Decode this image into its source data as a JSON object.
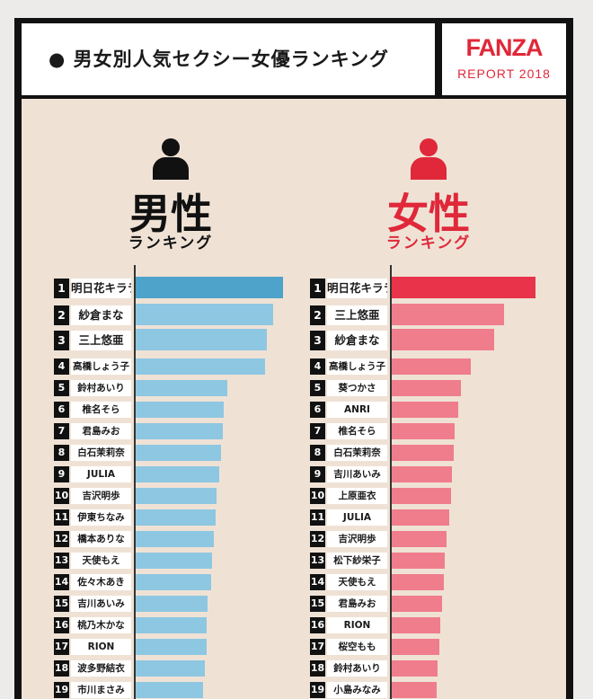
{
  "header": {
    "title": "● 男女別人気セクシー女優ランキング"
  },
  "logo": {
    "brand": "FANZA",
    "subtitle": "REPORT 2018"
  },
  "colors": {
    "male_top": "#4da3c9",
    "male_bar": "#8ec7e2",
    "female_top": "#e8334a",
    "female_bar": "#ef7d8c",
    "background": "#efe2d5"
  },
  "chart_data": [
    {
      "type": "bar",
      "orientation": "horizontal",
      "title": "男性",
      "subtitle": "ランキング",
      "icon": "person-icon",
      "categories": [
        "明日花キララ",
        "紗倉まな",
        "三上悠亜",
        "高橋しょう子",
        "鈴村あいり",
        "椎名そら",
        "君島みお",
        "白石茉莉奈",
        "JULIA",
        "吉沢明歩",
        "伊東ちなみ",
        "橋本ありな",
        "天使もえ",
        "佐々木あき",
        "吉川あいみ",
        "桃乃木かな",
        "RION",
        "波多野結衣",
        "市川まさみ"
      ],
      "ranks": [
        "1",
        "2",
        "3",
        "4",
        "5",
        "6",
        "7",
        "8",
        "9",
        "10",
        "11",
        "12",
        "13",
        "14",
        "15",
        "16",
        "17",
        "18",
        "19"
      ],
      "values": [
        100,
        93,
        89,
        88,
        62,
        60,
        59,
        58,
        57,
        55,
        54,
        53,
        52,
        51,
        49,
        48,
        48,
        47,
        46
      ]
    },
    {
      "type": "bar",
      "orientation": "horizontal",
      "title": "女性",
      "subtitle": "ランキング",
      "icon": "person-icon",
      "categories": [
        "明日花キララ",
        "三上悠亜",
        "紗倉まな",
        "高橋しょう子",
        "葵つかさ",
        "ANRI",
        "椎名そら",
        "白石茉莉奈",
        "吉川あいみ",
        "上原亜衣",
        "JULIA",
        "吉沢明歩",
        "松下紗栄子",
        "天使もえ",
        "君島みお",
        "RION",
        "桜空もも",
        "鈴村あいり",
        "小島みなみ"
      ],
      "ranks": [
        "1",
        "2",
        "3",
        "4",
        "5",
        "6",
        "7",
        "8",
        "9",
        "10",
        "11",
        "12",
        "13",
        "14",
        "15",
        "16",
        "17",
        "18",
        "19"
      ],
      "values": [
        100,
        78,
        71,
        55,
        48,
        46,
        44,
        43,
        42,
        41,
        40,
        38,
        37,
        36,
        35,
        34,
        33,
        32,
        31
      ]
    }
  ]
}
